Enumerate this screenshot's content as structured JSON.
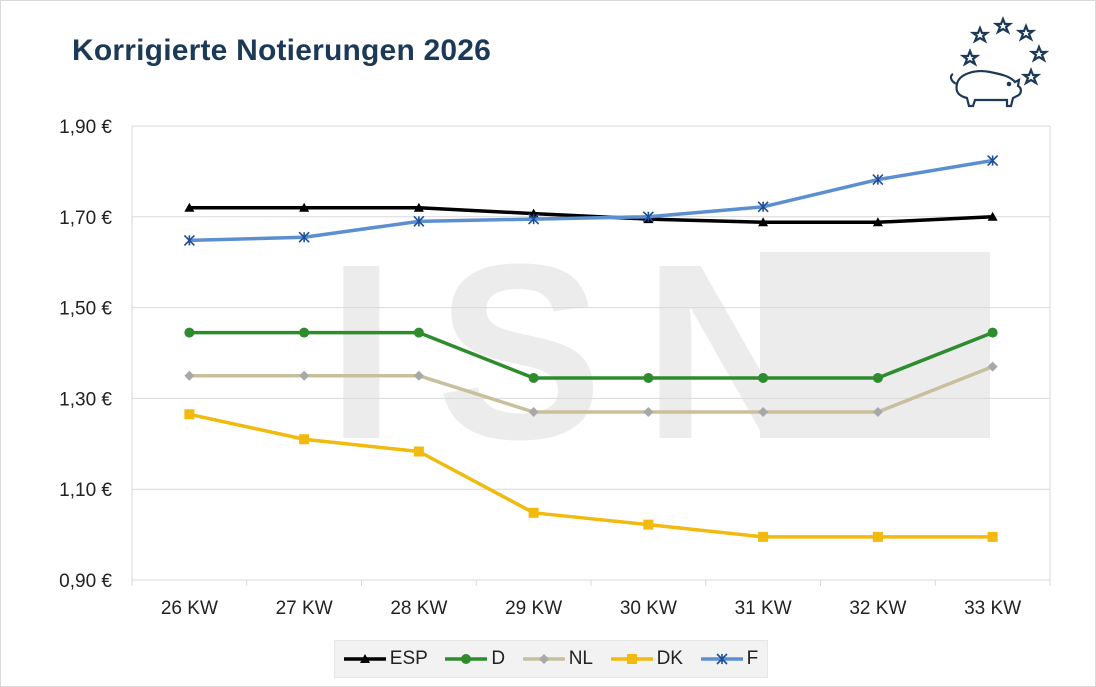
{
  "chart_data": {
    "type": "line",
    "title": "Korrigierte Notierungen 2026",
    "categories": [
      "26 KW",
      "27 KW",
      "28 KW",
      "29 KW",
      "30 KW",
      "31 KW",
      "32 KW",
      "33 KW"
    ],
    "yticks": [
      "0,90 €",
      "1,10 €",
      "1,30 €",
      "1,50 €",
      "1,70 €",
      "1,90 €"
    ],
    "ylim": [
      0.9,
      1.9
    ],
    "grid": true,
    "legend_position": "bottom",
    "series": [
      {
        "name": "ESP",
        "color": "#000000",
        "marker": "triangle",
        "values": [
          1.72,
          1.72,
          1.72,
          1.707,
          1.695,
          1.688,
          1.688,
          1.7
        ]
      },
      {
        "name": "D",
        "color": "#2e8b2e",
        "marker": "circle",
        "values": [
          1.445,
          1.445,
          1.445,
          1.345,
          1.345,
          1.345,
          1.345,
          1.445
        ]
      },
      {
        "name": "NL",
        "color": "#c8bf9c",
        "marker": "diamond",
        "values": [
          1.35,
          1.35,
          1.35,
          1.27,
          1.27,
          1.27,
          1.27,
          1.37
        ]
      },
      {
        "name": "DK",
        "color": "#f2b90f",
        "marker": "square",
        "values": [
          1.265,
          1.21,
          1.183,
          1.048,
          1.022,
          0.995,
          0.995,
          0.995
        ]
      },
      {
        "name": "F",
        "color": "#5b8fd0",
        "marker": "star",
        "values": [
          1.648,
          1.655,
          1.69,
          1.695,
          1.7,
          1.722,
          1.782,
          1.824
        ]
      }
    ]
  },
  "watermark_text": "ISN",
  "logo_icon": "pig-with-stars-icon"
}
